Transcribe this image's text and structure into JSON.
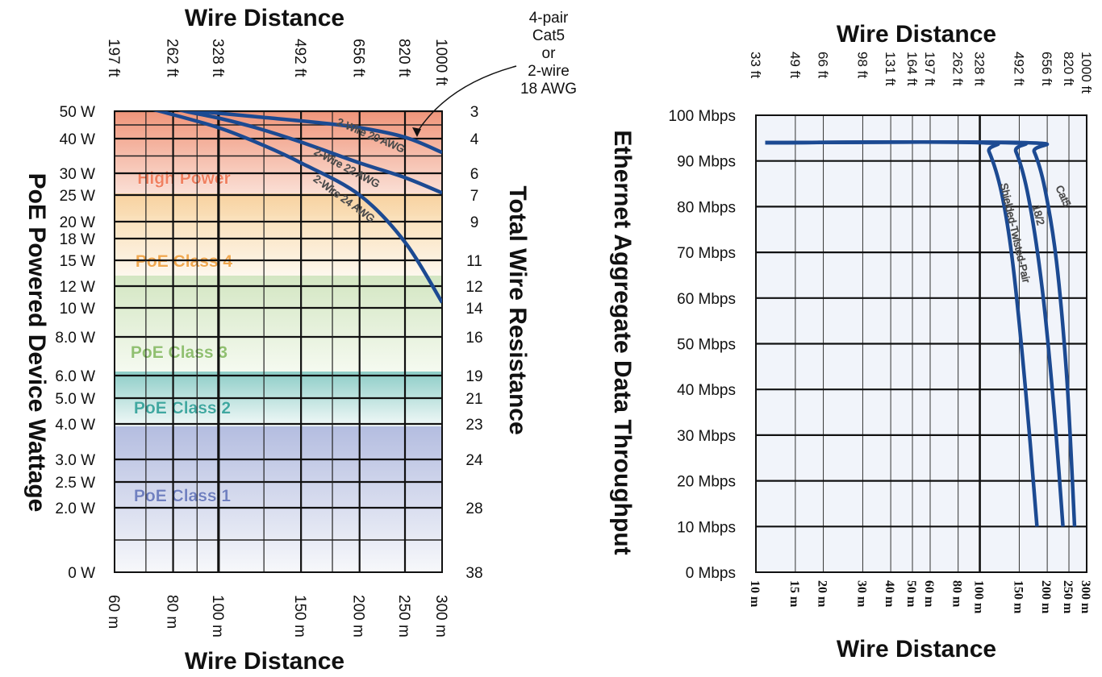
{
  "left_chart": {
    "top_axis_title": "Wire Distance",
    "bottom_axis_title": "Wire Distance",
    "left_axis_title": "PoE Powered Device Wattage",
    "right_axis_title": "Total Wire Resistance",
    "callout": [
      "4-pair",
      "Cat5",
      "or",
      "2-wire",
      "18 AWG"
    ]
  },
  "right_chart": {
    "top_axis_title": "Wire Distance",
    "bottom_axis_title": "Wire Distance",
    "left_axis_title": "Ethernet Aggregate Data Throughput"
  },
  "chart_data": [
    {
      "type": "line",
      "x_scale": "log",
      "y_scale": "piecewise",
      "x_bottom_label": "Wire Distance",
      "x_top_label": "Wire Distance",
      "y_left_label": "PoE Powered Device Wattage",
      "y_right_label": "Total Wire Resistance",
      "x_bottom_ticks": [
        "60 m",
        "80 m",
        "100 m",
        "150 m",
        "200 m",
        "250 m",
        "300 m"
      ],
      "x_top_ticks": [
        "197 ft",
        "262 ft",
        "328 ft",
        "492 ft",
        "656 ft",
        "820 ft",
        "1000 ft"
      ],
      "y_left_ticks": [
        "50 W",
        "40 W",
        "30 W",
        "25 W",
        "20 W",
        "18 W",
        "15 W",
        "12 W",
        "10 W",
        "8.0 W",
        "6.0 W",
        "5.0 W",
        "4.0 W",
        "3.0 W",
        "2.5 W",
        "2.0 W",
        "0 W"
      ],
      "y_right_ticks": [
        "3",
        "4",
        "6",
        "7",
        "9",
        "11",
        "12",
        "14",
        "16",
        "19",
        "21",
        "23",
        "24",
        "28",
        "38"
      ],
      "xlim": [
        60,
        300
      ],
      "ylim": [
        0,
        50
      ],
      "bands": [
        {
          "name": "High Power",
          "from_w": 15.4,
          "to_w": 50,
          "color": "#f08060"
        },
        {
          "name": "PoE Class 4",
          "from_w": 13,
          "to_w": 25.5,
          "color": "#f0a850"
        },
        {
          "name": "PoE Class 3",
          "from_w": 6.5,
          "to_w": 13,
          "color": "#90c070"
        },
        {
          "name": "PoE Class 2",
          "from_w": 3.84,
          "to_w": 6.5,
          "color": "#40a8a0"
        },
        {
          "name": "PoE Class 1",
          "from_w": 0,
          "to_w": 3.84,
          "color": "#7080c0"
        }
      ],
      "series": [
        {
          "name": "2-Wire 20 AWG",
          "x": [
            68,
            90,
            120,
            160,
            200,
            250,
            300
          ],
          "y": [
            52,
            50,
            48,
            46,
            44,
            40.5,
            36
          ]
        },
        {
          "name": "2-Wire 22 AWG",
          "x": [
            68,
            85,
            100,
            120,
            150,
            200,
            250,
            300
          ],
          "y": [
            54,
            50,
            47.5,
            44,
            39,
            33,
            29,
            25.5
          ]
        },
        {
          "name": "2-Wire 24 AWG",
          "x": [
            60,
            75,
            100,
            125,
            150,
            200,
            250,
            300
          ],
          "y": [
            54,
            50,
            44,
            38,
            33,
            25,
            17.5,
            10.5
          ]
        }
      ]
    },
    {
      "type": "line",
      "x_scale": "log",
      "x_bottom_label": "Wire Distance",
      "x_top_label": "Wire Distance",
      "y_left_label": "Ethernet Aggregate Data Throughput",
      "x_bottom_ticks": [
        "10 m",
        "15 m",
        "20 m",
        "30 m",
        "40 m",
        "50 m",
        "60 m",
        "80 m",
        "100 m",
        "150 m",
        "200 m",
        "250 m",
        "300 m"
      ],
      "x_top_ticks": [
        "33 ft",
        "49 ft",
        "66 ft",
        "98 ft",
        "131 ft",
        "164 ft",
        "197 ft",
        "262 ft",
        "328 ft",
        "492 ft",
        "656 ft",
        "820 ft",
        "1000 ft"
      ],
      "y_left_ticks": [
        "100 Mbps",
        "90 Mbps",
        "80 Mbps",
        "70 Mbps",
        "60 Mbps",
        "50 Mbps",
        "40 Mbps",
        "30 Mbps",
        "20 Mbps",
        "10 Mbps",
        "0 Mbps"
      ],
      "xlim": [
        10,
        300
      ],
      "ylim": [
        0,
        100
      ],
      "series": [
        {
          "name": "Shielded-Twisted-Pair",
          "x": [
            11,
            100,
            110,
            125,
            140,
            160,
            180
          ],
          "y": [
            94,
            94,
            92,
            83,
            68,
            40,
            10
          ]
        },
        {
          "name": "18/2",
          "x": [
            11,
            130,
            145,
            165,
            190,
            215,
            235
          ],
          "y": [
            94,
            94,
            92,
            82,
            62,
            35,
            10
          ]
        },
        {
          "name": "Cat5",
          "x": [
            11,
            160,
            175,
            195,
            220,
            245,
            265
          ],
          "y": [
            94,
            94,
            92,
            84,
            68,
            42,
            10
          ]
        }
      ]
    }
  ]
}
